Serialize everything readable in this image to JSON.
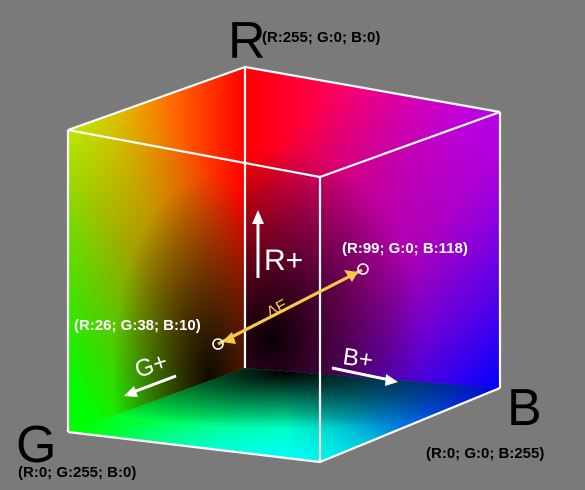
{
  "axes": {
    "r": {
      "letter": "R",
      "coord": "(R:255; G:0; B:0)"
    },
    "g": {
      "letter": "G",
      "coord": "(R:0; G:255; B:0)"
    },
    "b": {
      "letter": "B",
      "coord": "(R:0; G:0; B:255)"
    }
  },
  "points": {
    "p1": {
      "coord": "(R:26; G:38; B:10)"
    },
    "p2": {
      "coord": "(R:99; G:0; B:118)"
    }
  },
  "delta_label": "ΔE",
  "directions": {
    "r_plus": "R+",
    "g_plus": "G+",
    "b_plus": "B+"
  },
  "colors": {
    "background": "#7a7a7a",
    "red": "#ff0000",
    "green": "#00ff00",
    "blue": "#0000ff",
    "magenta": "#ff00ff",
    "yellow": "#ffff00",
    "cyan": "#00ffff",
    "black": "#000000",
    "delta_line": "#f7c948",
    "edge": "#ffffff"
  }
}
